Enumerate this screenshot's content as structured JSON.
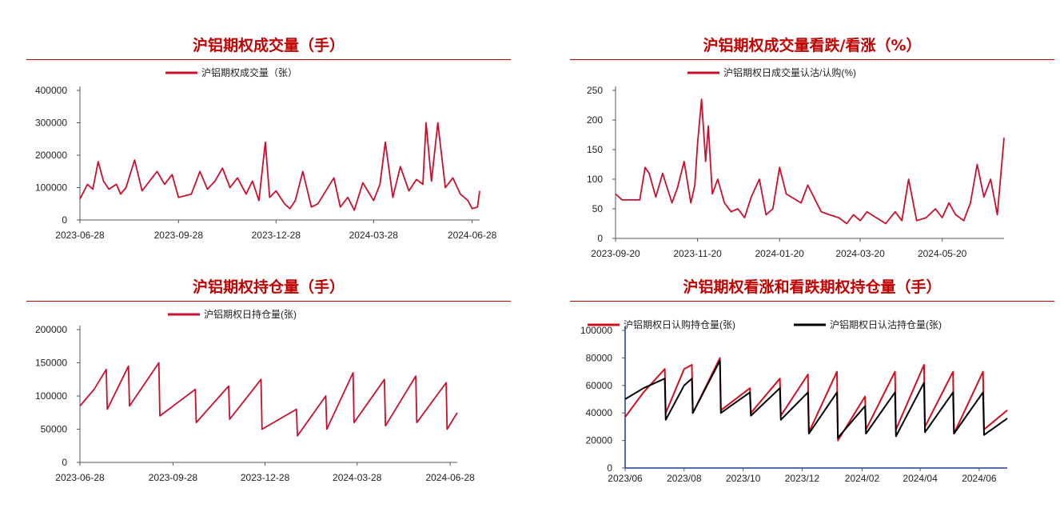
{
  "chart_data": [
    {
      "type": "line",
      "title": "沪铝期权成交量（手）",
      "series": [
        {
          "name": "沪铝期权成交量（张）",
          "color": "#c8102e",
          "x": [
            "2023-06-28",
            "2023-07-05",
            "2023-07-10",
            "2023-07-15",
            "2023-07-20",
            "2023-07-25",
            "2023-08-01",
            "2023-08-05",
            "2023-08-10",
            "2023-08-18",
            "2023-08-25",
            "2023-09-01",
            "2023-09-08",
            "2023-09-15",
            "2023-09-22",
            "2023-09-28",
            "2023-10-10",
            "2023-10-18",
            "2023-10-25",
            "2023-11-01",
            "2023-11-08",
            "2023-11-15",
            "2023-11-22",
            "2023-11-30",
            "2023-12-06",
            "2023-12-12",
            "2023-12-18",
            "2023-12-22",
            "2023-12-28",
            "2024-01-05",
            "2024-01-10",
            "2024-01-15",
            "2024-01-22",
            "2024-01-30",
            "2024-02-05",
            "2024-02-20",
            "2024-02-26",
            "2024-03-04",
            "2024-03-10",
            "2024-03-18",
            "2024-03-28",
            "2024-04-03",
            "2024-04-08",
            "2024-04-15",
            "2024-04-22",
            "2024-04-30",
            "2024-05-07",
            "2024-05-13",
            "2024-05-16",
            "2024-05-21",
            "2024-05-27",
            "2024-06-03",
            "2024-06-10",
            "2024-06-17",
            "2024-06-24",
            "2024-06-28",
            "2024-07-03",
            "2024-07-05"
          ],
          "values": [
            65000,
            110000,
            95000,
            180000,
            120000,
            95000,
            110000,
            80000,
            100000,
            185000,
            90000,
            120000,
            150000,
            110000,
            140000,
            70000,
            80000,
            150000,
            95000,
            120000,
            160000,
            100000,
            130000,
            80000,
            120000,
            60000,
            240000,
            70000,
            90000,
            50000,
            35000,
            60000,
            150000,
            40000,
            50000,
            130000,
            40000,
            70000,
            30000,
            115000,
            60000,
            110000,
            240000,
            70000,
            165000,
            90000,
            125000,
            110000,
            300000,
            120000,
            300000,
            100000,
            130000,
            80000,
            60000,
            35000,
            40000,
            90000
          ]
        }
      ],
      "xticks": [
        "2023-06-28",
        "2023-09-28",
        "2023-12-28",
        "2024-03-28",
        "2024-06-28"
      ],
      "yticks": [
        0,
        100000,
        200000,
        300000,
        400000
      ],
      "ylim": [
        0,
        400000
      ]
    },
    {
      "type": "line",
      "title": "沪铝期权成交量看跌/看涨（%）",
      "series": [
        {
          "name": "沪铝期权日成交量认沽/认购(%)",
          "color": "#c8102e",
          "x": [
            "2023-09-20",
            "2023-09-25",
            "2023-10-08",
            "2023-10-12",
            "2023-10-15",
            "2023-10-20",
            "2023-10-25",
            "2023-11-01",
            "2023-11-05",
            "2023-11-10",
            "2023-11-15",
            "2023-11-18",
            "2023-11-20",
            "2023-11-23",
            "2023-11-26",
            "2023-11-28",
            "2023-12-01",
            "2023-12-05",
            "2023-12-10",
            "2023-12-15",
            "2023-12-20",
            "2023-12-25",
            "2023-12-30",
            "2024-01-05",
            "2024-01-10",
            "2024-01-15",
            "2024-01-20",
            "2024-01-25",
            "2024-02-05",
            "2024-02-10",
            "2024-02-20",
            "2024-02-26",
            "2024-03-04",
            "2024-03-10",
            "2024-03-15",
            "2024-03-20",
            "2024-03-25",
            "2024-04-01",
            "2024-04-08",
            "2024-04-15",
            "2024-04-20",
            "2024-04-25",
            "2024-05-01",
            "2024-05-08",
            "2024-05-15",
            "2024-05-20",
            "2024-05-25",
            "2024-05-30",
            "2024-06-05",
            "2024-06-10",
            "2024-06-15",
            "2024-06-20",
            "2024-06-25",
            "2024-06-30",
            "2024-07-05"
          ],
          "values": [
            75,
            65,
            65,
            120,
            110,
            70,
            110,
            60,
            85,
            130,
            60,
            90,
            160,
            235,
            130,
            190,
            75,
            100,
            60,
            45,
            50,
            35,
            70,
            100,
            40,
            50,
            120,
            75,
            60,
            90,
            45,
            40,
            35,
            25,
            40,
            30,
            45,
            35,
            25,
            45,
            30,
            100,
            30,
            35,
            50,
            35,
            60,
            40,
            30,
            60,
            125,
            70,
            100,
            40,
            170
          ]
        }
      ],
      "xticks": [
        "2023-09-20",
        "2023-11-20",
        "2024-01-20",
        "2024-03-20",
        "2024-05-20"
      ],
      "yticks": [
        0,
        50,
        100,
        150,
        200,
        250
      ],
      "ylim": [
        0,
        250
      ]
    },
    {
      "type": "line",
      "title": "沪铝期权持仓量（手）",
      "series": [
        {
          "name": "沪铝期权日持仓量(张)",
          "color": "#c8102e",
          "x": [
            "2023-06-28",
            "2023-07-12",
            "2023-07-24",
            "2023-07-25",
            "2023-08-15",
            "2023-08-16",
            "2023-09-14",
            "2023-09-15",
            "2023-10-20",
            "2023-10-21",
            "2023-11-22",
            "2023-11-23",
            "2023-12-24",
            "2023-12-25",
            "2024-01-28",
            "2024-01-29",
            "2024-02-26",
            "2024-02-27",
            "2024-03-24",
            "2024-03-25",
            "2024-04-24",
            "2024-04-25",
            "2024-05-25",
            "2024-05-26",
            "2024-06-24",
            "2024-06-25",
            "2024-07-05"
          ],
          "values": [
            85000,
            110000,
            140000,
            80000,
            145000,
            85000,
            150000,
            70000,
            110000,
            60000,
            115000,
            65000,
            125000,
            50000,
            80000,
            40000,
            100000,
            50000,
            135000,
            60000,
            125000,
            55000,
            130000,
            60000,
            120000,
            50000,
            75000
          ]
        }
      ],
      "xticks": [
        "2023-06-28",
        "2023-09-28",
        "2023-12-28",
        "2024-03-28",
        "2024-06-28"
      ],
      "yticks": [
        0,
        50000,
        100000,
        150000,
        200000
      ],
      "ylim": [
        0,
        200000
      ]
    },
    {
      "type": "line",
      "title": "沪铝期权看涨和看跌期权持仓量（手）",
      "series": [
        {
          "name": "沪铝期权日认购持仓量(张)",
          "color": "#d0101e",
          "x": [
            "2023-06-01",
            "2023-06-20",
            "2023-07-12",
            "2023-07-13",
            "2023-08-01",
            "2023-08-09",
            "2023-08-10",
            "2023-09-07",
            "2023-09-08",
            "2023-10-08",
            "2023-10-09",
            "2023-11-08",
            "2023-11-09",
            "2023-12-07",
            "2023-12-08",
            "2024-01-06",
            "2024-01-07",
            "2024-02-04",
            "2024-02-05",
            "2024-03-06",
            "2024-03-07",
            "2024-04-05",
            "2024-04-06",
            "2024-05-05",
            "2024-05-06",
            "2024-06-05",
            "2024-06-06",
            "2024-06-30"
          ],
          "values": [
            37000,
            55000,
            72000,
            40000,
            72000,
            75000,
            40000,
            80000,
            42000,
            58000,
            40000,
            65000,
            38000,
            68000,
            26000,
            70000,
            20000,
            52000,
            28000,
            70000,
            28000,
            75000,
            30000,
            70000,
            25000,
            70000,
            28000,
            42000
          ]
        },
        {
          "name": "沪铝期权日认沽持仓量(张)",
          "color": "#000000",
          "x": [
            "2023-06-01",
            "2023-06-20",
            "2023-07-12",
            "2023-07-13",
            "2023-08-01",
            "2023-08-09",
            "2023-08-10",
            "2023-09-07",
            "2023-09-08",
            "2023-10-08",
            "2023-10-09",
            "2023-11-08",
            "2023-11-09",
            "2023-12-07",
            "2023-12-08",
            "2024-01-06",
            "2024-01-07",
            "2024-02-04",
            "2024-02-05",
            "2024-03-06",
            "2024-03-07",
            "2024-04-05",
            "2024-04-06",
            "2024-05-05",
            "2024-05-06",
            "2024-06-05",
            "2024-06-06",
            "2024-06-30"
          ],
          "values": [
            50000,
            58000,
            65000,
            35000,
            60000,
            65000,
            40000,
            78000,
            40000,
            55000,
            38000,
            58000,
            35000,
            55000,
            25000,
            55000,
            22000,
            45000,
            25000,
            55000,
            23000,
            62000,
            26000,
            55000,
            25000,
            55000,
            24000,
            36000
          ]
        }
      ],
      "xticks": [
        "2023/06",
        "2023/08",
        "2023/10",
        "2023/12",
        "2024/02",
        "2024/04",
        "2024/06"
      ],
      "yticks": [
        0,
        20000,
        40000,
        60000,
        80000,
        100000
      ],
      "ylim": [
        0,
        100000
      ]
    }
  ]
}
